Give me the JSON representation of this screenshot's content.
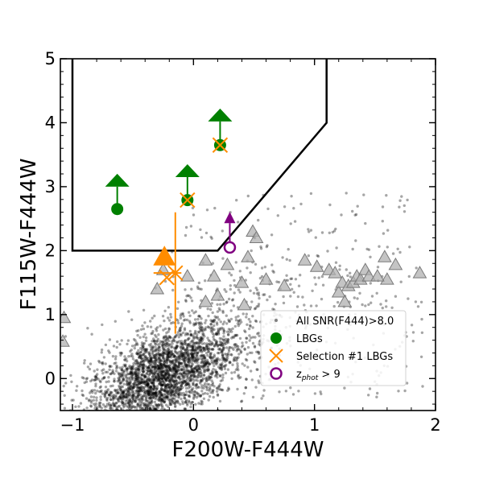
{
  "chart_data": {
    "type": "scatter",
    "xlabel": "F200W-F444W",
    "ylabel": "F115W-F444W",
    "xlim": [
      -1.1,
      2.0
    ],
    "ylim": [
      -0.5,
      5.0
    ],
    "x_ticks": [
      -1,
      0,
      1,
      2
    ],
    "x_tick_labels": [
      "−1",
      "0",
      "1",
      "2"
    ],
    "y_ticks": [
      0,
      1,
      2,
      3,
      4,
      5
    ],
    "y_tick_labels": [
      "0",
      "1",
      "2",
      "3",
      "4",
      "5"
    ],
    "grid": false,
    "legend_position": "lower-right",
    "legend": [
      {
        "label": "All SNR(F444)>8.0",
        "marker": "dot",
        "color": "#808080"
      },
      {
        "label": "LBGs",
        "marker": "filled-circle",
        "color": "#008000"
      },
      {
        "label": "Selection #1 LBGs",
        "marker": "x",
        "color": "#ff8c00"
      },
      {
        "label_main": "z",
        "label_sub": "phot",
        "label_rest": " > 9",
        "marker": "open-circle",
        "color": "#800080"
      }
    ],
    "selection_region": {
      "color": "#000000",
      "vertices": [
        [
          -1.0,
          5.0
        ],
        [
          -1.0,
          2.0
        ],
        [
          0.2,
          2.0
        ],
        [
          1.1,
          4.0
        ],
        [
          1.1,
          5.0
        ]
      ]
    },
    "lbgs": {
      "color": "#008000",
      "points": [
        {
          "x": -0.63,
          "y": 2.65,
          "lower_limit": true,
          "arrow_top": 3.0
        },
        {
          "x": -0.05,
          "y": 2.79,
          "lower_limit": true,
          "arrow_top": 3.15
        },
        {
          "x": 0.22,
          "y": 3.65,
          "lower_limit": true,
          "arrow_top": 4.02
        }
      ]
    },
    "selection1_lbgs": {
      "color": "#ff8c00",
      "points": [
        {
          "x": -0.05,
          "y": 2.79
        },
        {
          "x": 0.22,
          "y": 3.65
        },
        {
          "x": -0.22,
          "y": 1.58
        },
        {
          "x": -0.15,
          "y": 1.65,
          "xerr": [
            0.18,
            0.05
          ],
          "yerr": [
            0.95,
            0.95
          ]
        }
      ],
      "limit_triangle": {
        "x": -0.24,
        "y": 1.9
      }
    },
    "zphot_gt9": {
      "color": "#800080",
      "points": [
        {
          "x": 0.3,
          "y": 2.05,
          "lower_limit": true,
          "arrow_top": 2.43
        }
      ]
    },
    "gray_limits": {
      "color": "#b0b0b0",
      "points": [
        [
          -1.07,
          0.95
        ],
        [
          -1.08,
          0.58
        ],
        [
          -0.3,
          1.4
        ],
        [
          -0.25,
          1.7
        ],
        [
          -0.05,
          1.6
        ],
        [
          0.1,
          1.2
        ],
        [
          0.1,
          1.85
        ],
        [
          0.17,
          1.6
        ],
        [
          0.2,
          1.3
        ],
        [
          0.28,
          1.78
        ],
        [
          0.4,
          1.5
        ],
        [
          0.42,
          1.15
        ],
        [
          0.45,
          1.9
        ],
        [
          0.49,
          2.3
        ],
        [
          0.52,
          2.2
        ],
        [
          0.6,
          1.55
        ],
        [
          0.75,
          1.45
        ],
        [
          0.92,
          1.85
        ],
        [
          1.02,
          1.75
        ],
        [
          1.12,
          1.7
        ],
        [
          1.17,
          1.65
        ],
        [
          1.2,
          1.35
        ],
        [
          1.23,
          1.5
        ],
        [
          1.25,
          1.2
        ],
        [
          1.28,
          1.45
        ],
        [
          1.32,
          1.5
        ],
        [
          1.35,
          1.6
        ],
        [
          1.38,
          1.55
        ],
        [
          1.42,
          1.7
        ],
        [
          1.45,
          1.6
        ],
        [
          1.58,
          1.9
        ],
        [
          1.6,
          1.55
        ],
        [
          1.67,
          1.78
        ],
        [
          1.87,
          1.65
        ],
        [
          1.52,
          1.6
        ]
      ]
    }
  }
}
